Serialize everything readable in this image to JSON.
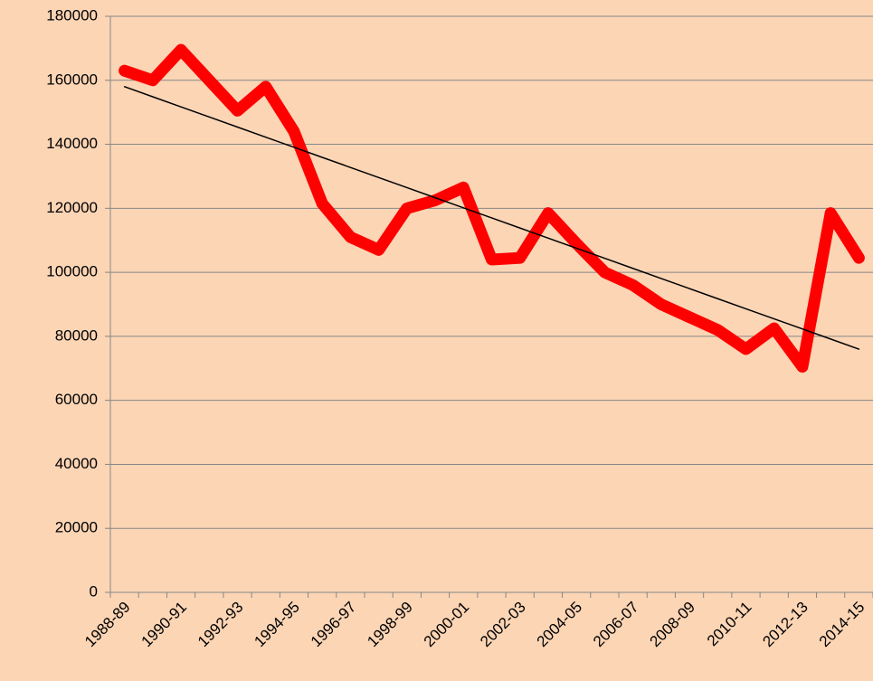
{
  "chart_data": {
    "type": "line",
    "categories": [
      "1988-89",
      null,
      "1990-91",
      null,
      "1992-93",
      null,
      "1994-95",
      null,
      "1996-97",
      null,
      "1998-99",
      null,
      "2000-01",
      null,
      "2002-03",
      null,
      "2004-05",
      null,
      "2006-07",
      null,
      "2008-09",
      null,
      "2010-11",
      null,
      "2012-13",
      null,
      "2014-15"
    ],
    "series": [
      {
        "color": "#ff0000",
        "values": [
          163000,
          160000,
          169500,
          160000,
          150500,
          158000,
          144000,
          121500,
          111000,
          107000,
          120000,
          122500,
          126500,
          104000,
          104500,
          118500,
          109000,
          100000,
          96000,
          90000,
          86000,
          82000,
          76000,
          82500,
          70500,
          118500,
          104500
        ]
      },
      {
        "color": "#000000",
        "values": [
          158000,
          154846,
          151692,
          148538,
          145385,
          142231,
          139077,
          135923,
          132769,
          129615,
          126462,
          123308,
          120154,
          117000,
          113846,
          110692,
          107538,
          104385,
          101231,
          98077,
          94923,
          91769,
          88615,
          85462,
          82308,
          79154,
          76000
        ]
      }
    ],
    "ylim": [
      0,
      180000
    ],
    "yticks": [
      0,
      20000,
      40000,
      60000,
      80000,
      100000,
      120000,
      140000,
      160000,
      180000
    ],
    "grid": true
  }
}
